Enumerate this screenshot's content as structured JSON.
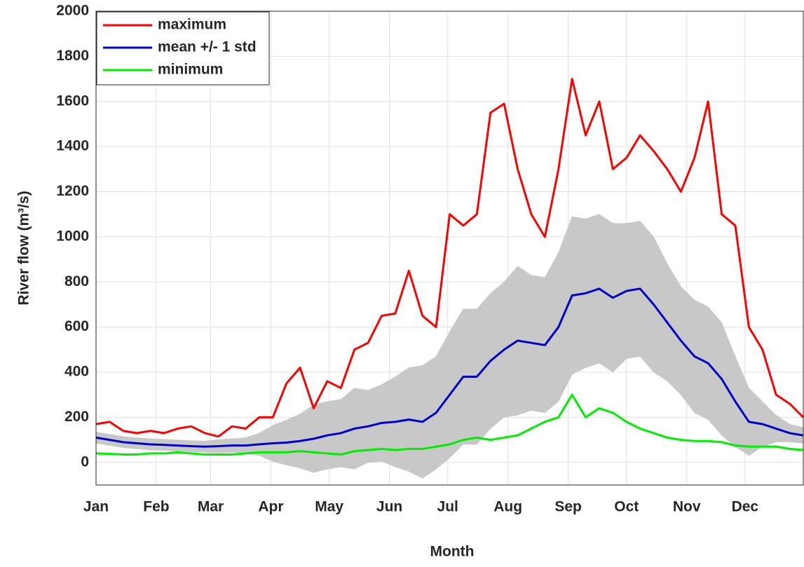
{
  "chart_data": {
    "type": "line",
    "ylabel": "River flow (m³/s)",
    "xlabel": "Month",
    "x": [
      1,
      8,
      15,
      22,
      29,
      36,
      43,
      50,
      57,
      64,
      71,
      78,
      85,
      92,
      99,
      106,
      113,
      120,
      127,
      134,
      141,
      148,
      155,
      162,
      169,
      176,
      183,
      190,
      197,
      204,
      211,
      218,
      225,
      232,
      239,
      246,
      253,
      260,
      267,
      274,
      281,
      288,
      295,
      302,
      309,
      316,
      323,
      330,
      337,
      344,
      351,
      358,
      365
    ],
    "xlim": [
      1,
      365
    ],
    "xticks": [
      {
        "value": 1,
        "label": "Jan"
      },
      {
        "value": 32,
        "label": "Feb"
      },
      {
        "value": 60,
        "label": "Mar"
      },
      {
        "value": 91,
        "label": "Apr"
      },
      {
        "value": 121,
        "label": "May"
      },
      {
        "value": 152,
        "label": "Jun"
      },
      {
        "value": 182,
        "label": "Jul"
      },
      {
        "value": 213,
        "label": "Aug"
      },
      {
        "value": 244,
        "label": "Sep"
      },
      {
        "value": 274,
        "label": "Oct"
      },
      {
        "value": 305,
        "label": "Nov"
      },
      {
        "value": 335,
        "label": "Dec"
      }
    ],
    "ylim": [
      -100,
      2000
    ],
    "yticks": [
      0,
      200,
      400,
      600,
      800,
      1000,
      1200,
      1400,
      1600,
      1800,
      2000
    ],
    "grid": true,
    "legend": "upper-left",
    "band_color": "#c8c8c8",
    "series": [
      {
        "name": "maximum",
        "color": "#ff0000",
        "values": [
          170,
          180,
          140,
          130,
          140,
          130,
          150,
          160,
          130,
          115,
          160,
          150,
          200,
          200,
          350,
          420,
          240,
          360,
          330,
          500,
          530,
          650,
          660,
          850,
          650,
          600,
          1100,
          1050,
          1100,
          1550,
          1590,
          1300,
          1100,
          1000,
          1300,
          1700,
          1450,
          1600,
          1300,
          1350,
          1450,
          1380,
          1300,
          1200,
          1350,
          1600,
          1100,
          1050,
          600,
          500,
          300,
          260,
          200
        ]
      },
      {
        "name": "mean +/- 1 std",
        "color": "#0000cc",
        "values": [
          110,
          100,
          90,
          85,
          80,
          78,
          75,
          72,
          70,
          72,
          75,
          75,
          80,
          85,
          88,
          95,
          105,
          120,
          130,
          150,
          160,
          175,
          180,
          190,
          180,
          220,
          300,
          380,
          380,
          450,
          500,
          540,
          530,
          520,
          600,
          740,
          750,
          770,
          730,
          760,
          770,
          700,
          620,
          540,
          470,
          440,
          370,
          270,
          180,
          170,
          150,
          130,
          120
        ],
        "std": [
          25,
          25,
          25,
          25,
          25,
          25,
          25,
          25,
          25,
          30,
          30,
          35,
          50,
          80,
          100,
          120,
          150,
          150,
          150,
          180,
          160,
          170,
          200,
          230,
          250,
          250,
          280,
          300,
          300,
          300,
          300,
          330,
          300,
          300,
          330,
          350,
          330,
          330,
          330,
          300,
          300,
          300,
          260,
          240,
          250,
          250,
          250,
          200,
          150,
          100,
          60,
          40,
          35
        ]
      },
      {
        "name": "minimum",
        "color": "#00ee00",
        "values": [
          40,
          38,
          35,
          35,
          40,
          40,
          45,
          40,
          35,
          35,
          35,
          40,
          45,
          45,
          45,
          50,
          45,
          40,
          35,
          50,
          55,
          60,
          55,
          60,
          60,
          70,
          80,
          100,
          110,
          100,
          110,
          120,
          150,
          180,
          200,
          300,
          200,
          240,
          220,
          180,
          150,
          130,
          110,
          100,
          95,
          95,
          90,
          75,
          70,
          70,
          70,
          60,
          55
        ]
      }
    ]
  }
}
